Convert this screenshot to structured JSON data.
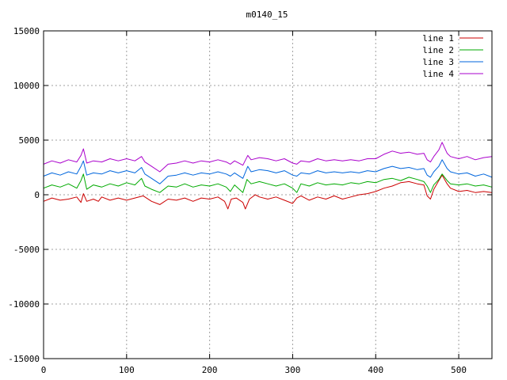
{
  "chart_data": {
    "type": "line",
    "title": "m0140_15",
    "xlabel": "",
    "ylabel": "",
    "xlim": [
      0,
      540
    ],
    "ylim": [
      -15000,
      15000
    ],
    "xticks": [
      0,
      100,
      200,
      300,
      400,
      500
    ],
    "yticks": [
      -15000,
      -10000,
      -5000,
      0,
      5000,
      10000,
      15000
    ],
    "grid": true,
    "legend_position": "top-right",
    "series": [
      {
        "name": "line 1",
        "color": "#cc0000",
        "points": [
          [
            0,
            -600
          ],
          [
            10,
            -300
          ],
          [
            20,
            -500
          ],
          [
            30,
            -400
          ],
          [
            40,
            -200
          ],
          [
            45,
            -700
          ],
          [
            48,
            100
          ],
          [
            52,
            -600
          ],
          [
            60,
            -400
          ],
          [
            66,
            -600
          ],
          [
            70,
            -200
          ],
          [
            80,
            -500
          ],
          [
            90,
            -300
          ],
          [
            100,
            -500
          ],
          [
            110,
            -300
          ],
          [
            120,
            -100
          ],
          [
            130,
            -600
          ],
          [
            140,
            -900
          ],
          [
            150,
            -400
          ],
          [
            160,
            -500
          ],
          [
            170,
            -300
          ],
          [
            180,
            -600
          ],
          [
            190,
            -300
          ],
          [
            200,
            -400
          ],
          [
            210,
            -200
          ],
          [
            218,
            -600
          ],
          [
            222,
            -1300
          ],
          [
            226,
            -400
          ],
          [
            232,
            -300
          ],
          [
            240,
            -700
          ],
          [
            243,
            -1300
          ],
          [
            248,
            -400
          ],
          [
            255,
            0
          ],
          [
            260,
            -200
          ],
          [
            270,
            -400
          ],
          [
            280,
            -200
          ],
          [
            290,
            -500
          ],
          [
            300,
            -800
          ],
          [
            305,
            -300
          ],
          [
            310,
            -100
          ],
          [
            320,
            -500
          ],
          [
            330,
            -200
          ],
          [
            340,
            -400
          ],
          [
            350,
            -100
          ],
          [
            360,
            -400
          ],
          [
            370,
            -200
          ],
          [
            380,
            0
          ],
          [
            390,
            100
          ],
          [
            400,
            300
          ],
          [
            410,
            600
          ],
          [
            420,
            800
          ],
          [
            430,
            1100
          ],
          [
            440,
            1200
          ],
          [
            450,
            1000
          ],
          [
            458,
            900
          ],
          [
            462,
            -100
          ],
          [
            466,
            -400
          ],
          [
            470,
            500
          ],
          [
            476,
            1300
          ],
          [
            480,
            1800
          ],
          [
            486,
            1000
          ],
          [
            490,
            600
          ],
          [
            500,
            300
          ],
          [
            510,
            400
          ],
          [
            520,
            200
          ],
          [
            530,
            300
          ],
          [
            540,
            200
          ]
        ]
      },
      {
        "name": "line 2",
        "color": "#00aa00",
        "points": [
          [
            0,
            600
          ],
          [
            10,
            900
          ],
          [
            20,
            700
          ],
          [
            30,
            1000
          ],
          [
            40,
            600
          ],
          [
            45,
            1300
          ],
          [
            48,
            1900
          ],
          [
            52,
            500
          ],
          [
            60,
            900
          ],
          [
            70,
            700
          ],
          [
            80,
            1000
          ],
          [
            90,
            800
          ],
          [
            100,
            1100
          ],
          [
            110,
            900
          ],
          [
            118,
            1500
          ],
          [
            122,
            800
          ],
          [
            130,
            500
          ],
          [
            140,
            200
          ],
          [
            150,
            800
          ],
          [
            160,
            700
          ],
          [
            170,
            1000
          ],
          [
            180,
            700
          ],
          [
            190,
            900
          ],
          [
            200,
            800
          ],
          [
            210,
            1000
          ],
          [
            220,
            700
          ],
          [
            225,
            300
          ],
          [
            230,
            900
          ],
          [
            240,
            200
          ],
          [
            245,
            1400
          ],
          [
            250,
            1000
          ],
          [
            260,
            1200
          ],
          [
            270,
            1000
          ],
          [
            280,
            800
          ],
          [
            290,
            1000
          ],
          [
            300,
            600
          ],
          [
            305,
            200
          ],
          [
            310,
            1000
          ],
          [
            320,
            800
          ],
          [
            330,
            1100
          ],
          [
            340,
            900
          ],
          [
            350,
            1000
          ],
          [
            360,
            900
          ],
          [
            370,
            1100
          ],
          [
            380,
            1000
          ],
          [
            390,
            1200
          ],
          [
            400,
            1100
          ],
          [
            410,
            1400
          ],
          [
            420,
            1500
          ],
          [
            430,
            1300
          ],
          [
            440,
            1600
          ],
          [
            450,
            1400
          ],
          [
            458,
            1200
          ],
          [
            462,
            800
          ],
          [
            466,
            200
          ],
          [
            470,
            900
          ],
          [
            476,
            1400
          ],
          [
            480,
            1900
          ],
          [
            486,
            1300
          ],
          [
            490,
            1000
          ],
          [
            500,
            900
          ],
          [
            510,
            1000
          ],
          [
            520,
            800
          ],
          [
            530,
            900
          ],
          [
            540,
            700
          ]
        ]
      },
      {
        "name": "line 3",
        "color": "#0066dd",
        "points": [
          [
            0,
            1700
          ],
          [
            10,
            2000
          ],
          [
            20,
            1800
          ],
          [
            30,
            2100
          ],
          [
            40,
            1900
          ],
          [
            45,
            2600
          ],
          [
            48,
            3100
          ],
          [
            52,
            1800
          ],
          [
            60,
            2000
          ],
          [
            70,
            1900
          ],
          [
            80,
            2200
          ],
          [
            90,
            2000
          ],
          [
            100,
            2200
          ],
          [
            110,
            2000
          ],
          [
            118,
            2500
          ],
          [
            122,
            1900
          ],
          [
            130,
            1500
          ],
          [
            140,
            1000
          ],
          [
            150,
            1700
          ],
          [
            160,
            1800
          ],
          [
            170,
            2000
          ],
          [
            180,
            1800
          ],
          [
            190,
            2000
          ],
          [
            200,
            1900
          ],
          [
            210,
            2100
          ],
          [
            220,
            1900
          ],
          [
            225,
            1700
          ],
          [
            230,
            2000
          ],
          [
            240,
            1500
          ],
          [
            246,
            2600
          ],
          [
            250,
            2100
          ],
          [
            260,
            2300
          ],
          [
            270,
            2200
          ],
          [
            280,
            2000
          ],
          [
            290,
            2200
          ],
          [
            300,
            1800
          ],
          [
            305,
            1700
          ],
          [
            310,
            2000
          ],
          [
            320,
            1900
          ],
          [
            330,
            2200
          ],
          [
            340,
            2000
          ],
          [
            350,
            2100
          ],
          [
            360,
            2000
          ],
          [
            370,
            2100
          ],
          [
            380,
            2000
          ],
          [
            390,
            2200
          ],
          [
            400,
            2100
          ],
          [
            410,
            2400
          ],
          [
            420,
            2600
          ],
          [
            430,
            2400
          ],
          [
            440,
            2500
          ],
          [
            450,
            2300
          ],
          [
            458,
            2400
          ],
          [
            462,
            1800
          ],
          [
            466,
            1600
          ],
          [
            470,
            2100
          ],
          [
            476,
            2600
          ],
          [
            480,
            3200
          ],
          [
            486,
            2400
          ],
          [
            490,
            2100
          ],
          [
            500,
            1900
          ],
          [
            510,
            2000
          ],
          [
            520,
            1700
          ],
          [
            530,
            1900
          ],
          [
            540,
            1600
          ]
        ]
      },
      {
        "name": "line 4",
        "color": "#aa00cc",
        "points": [
          [
            0,
            2800
          ],
          [
            10,
            3100
          ],
          [
            20,
            2900
          ],
          [
            30,
            3200
          ],
          [
            40,
            3000
          ],
          [
            45,
            3600
          ],
          [
            48,
            4200
          ],
          [
            52,
            2900
          ],
          [
            60,
            3100
          ],
          [
            70,
            3000
          ],
          [
            80,
            3300
          ],
          [
            90,
            3100
          ],
          [
            100,
            3300
          ],
          [
            110,
            3100
          ],
          [
            118,
            3500
          ],
          [
            122,
            3000
          ],
          [
            130,
            2600
          ],
          [
            140,
            2100
          ],
          [
            150,
            2800
          ],
          [
            160,
            2900
          ],
          [
            170,
            3100
          ],
          [
            180,
            2900
          ],
          [
            190,
            3100
          ],
          [
            200,
            3000
          ],
          [
            210,
            3200
          ],
          [
            220,
            3000
          ],
          [
            225,
            2800
          ],
          [
            230,
            3100
          ],
          [
            240,
            2700
          ],
          [
            246,
            3600
          ],
          [
            250,
            3200
          ],
          [
            260,
            3400
          ],
          [
            270,
            3300
          ],
          [
            280,
            3100
          ],
          [
            290,
            3300
          ],
          [
            300,
            2900
          ],
          [
            305,
            2800
          ],
          [
            310,
            3100
          ],
          [
            320,
            3000
          ],
          [
            330,
            3300
          ],
          [
            340,
            3100
          ],
          [
            350,
            3200
          ],
          [
            360,
            3100
          ],
          [
            370,
            3200
          ],
          [
            380,
            3100
          ],
          [
            390,
            3300
          ],
          [
            400,
            3300
          ],
          [
            410,
            3700
          ],
          [
            420,
            4000
          ],
          [
            430,
            3800
          ],
          [
            440,
            3900
          ],
          [
            450,
            3700
          ],
          [
            458,
            3800
          ],
          [
            462,
            3200
          ],
          [
            466,
            3000
          ],
          [
            470,
            3500
          ],
          [
            476,
            4100
          ],
          [
            480,
            4800
          ],
          [
            486,
            3800
          ],
          [
            490,
            3500
          ],
          [
            500,
            3300
          ],
          [
            510,
            3500
          ],
          [
            520,
            3200
          ],
          [
            530,
            3400
          ],
          [
            540,
            3500
          ]
        ]
      }
    ]
  }
}
